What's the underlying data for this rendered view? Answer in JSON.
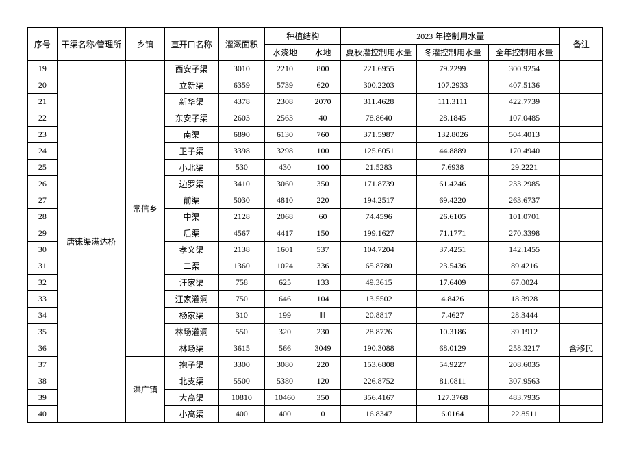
{
  "headers": {
    "seq": "序号",
    "canal": "干渠名称/管理所",
    "town": "乡镇",
    "opening": "直开口名称",
    "area": "灌溉面积",
    "plant_group": "种植结构",
    "plant_irrigated": "水浇地",
    "plant_water": "水地",
    "ctrl_group": "2023 年控制用水量",
    "ctrl_summer": "夏秋灌控制用水量",
    "ctrl_winter": "冬灌控制用水量",
    "ctrl_year": "全年控制用水量",
    "note": "备注"
  },
  "canal_name": "唐徕渠满达桥",
  "groups": [
    {
      "town": "常信乡",
      "rows": [
        {
          "seq": "19",
          "opening": "西安子渠",
          "area": "3010",
          "irrigated": "2210",
          "water": "800",
          "summer": "221.6955",
          "winter": "79.2299",
          "year": "300.9254",
          "note": ""
        },
        {
          "seq": "20",
          "opening": "立新渠",
          "area": "6359",
          "irrigated": "5739",
          "water": "620",
          "summer": "300.2203",
          "winter": "107.2933",
          "year": "407.5136",
          "note": ""
        },
        {
          "seq": "21",
          "opening": "新华渠",
          "area": "4378",
          "irrigated": "2308",
          "water": "2070",
          "summer": "311.4628",
          "winter": "111.3111",
          "year": "422.7739",
          "note": ""
        },
        {
          "seq": "22",
          "opening": "东安子渠",
          "area": "2603",
          "irrigated": "2563",
          "water": "40",
          "summer": "78.8640",
          "winter": "28.1845",
          "year": "107.0485",
          "note": ""
        },
        {
          "seq": "23",
          "opening": "南渠",
          "area": "6890",
          "irrigated": "6130",
          "water": "760",
          "summer": "371.5987",
          "winter": "132.8026",
          "year": "504.4013",
          "note": ""
        },
        {
          "seq": "24",
          "opening": "卫子渠",
          "area": "3398",
          "irrigated": "3298",
          "water": "100",
          "summer": "125.6051",
          "winter": "44.8889",
          "year": "170.4940",
          "note": ""
        },
        {
          "seq": "25",
          "opening": "小北渠",
          "area": "530",
          "irrigated": "430",
          "water": "100",
          "summer": "21.5283",
          "winter": "7.6938",
          "year": "29.2221",
          "note": ""
        },
        {
          "seq": "26",
          "opening": "边罗渠",
          "area": "3410",
          "irrigated": "3060",
          "water": "350",
          "summer": "171.8739",
          "winter": "61.4246",
          "year": "233.2985",
          "note": ""
        },
        {
          "seq": "27",
          "opening": "前渠",
          "area": "5030",
          "irrigated": "4810",
          "water": "220",
          "summer": "194.2517",
          "winter": "69.4220",
          "year": "263.6737",
          "note": ""
        },
        {
          "seq": "28",
          "opening": "中渠",
          "area": "2128",
          "irrigated": "2068",
          "water": "60",
          "summer": "74.4596",
          "winter": "26.6105",
          "year": "101.0701",
          "note": ""
        },
        {
          "seq": "29",
          "opening": "后渠",
          "area": "4567",
          "irrigated": "4417",
          "water": "150",
          "summer": "199.1627",
          "winter": "71.1771",
          "year": "270.3398",
          "note": ""
        },
        {
          "seq": "30",
          "opening": "孝义渠",
          "area": "2138",
          "irrigated": "1601",
          "water": "537",
          "summer": "104.7204",
          "winter": "37.4251",
          "year": "142.1455",
          "note": ""
        },
        {
          "seq": "31",
          "opening": "二渠",
          "area": "1360",
          "irrigated": "1024",
          "water": "336",
          "summer": "65.8780",
          "winter": "23.5436",
          "year": "89.4216",
          "note": ""
        },
        {
          "seq": "32",
          "opening": "汪家渠",
          "area": "758",
          "irrigated": "625",
          "water": "133",
          "summer": "49.3615",
          "winter": "17.6409",
          "year": "67.0024",
          "note": ""
        },
        {
          "seq": "33",
          "opening": "汪家灌洞",
          "area": "750",
          "irrigated": "646",
          "water": "104",
          "summer": "13.5502",
          "winter": "4.8426",
          "year": "18.3928",
          "note": ""
        },
        {
          "seq": "34",
          "opening": "杨家渠",
          "area": "310",
          "irrigated": "199",
          "water": "Ⅲ",
          "summer": "20.8817",
          "winter": "7.4627",
          "year": "28.3444",
          "note": ""
        },
        {
          "seq": "35",
          "opening": "林场灌洞",
          "area": "550",
          "irrigated": "320",
          "water": "230",
          "summer": "28.8726",
          "winter": "10.3186",
          "year": "39.1912",
          "note": ""
        },
        {
          "seq": "36",
          "opening": "林场渠",
          "area": "3615",
          "irrigated": "566",
          "water": "3049",
          "summer": "190.3088",
          "winter": "68.0129",
          "year": "258.3217",
          "note": "含移民"
        }
      ]
    },
    {
      "town": "洪广镇",
      "rows": [
        {
          "seq": "37",
          "opening": "抱子渠",
          "area": "3300",
          "irrigated": "3080",
          "water": "220",
          "summer": "153.6808",
          "winter": "54.9227",
          "year": "208.6035",
          "note": ""
        },
        {
          "seq": "38",
          "opening": "北支渠",
          "area": "5500",
          "irrigated": "5380",
          "water": "120",
          "summer": "226.8752",
          "winter": "81.0811",
          "year": "307.9563",
          "note": ""
        },
        {
          "seq": "39",
          "opening": "大高渠",
          "area": "10810",
          "irrigated": "10460",
          "water": "350",
          "summer": "356.4167",
          "winter": "127.3768",
          "year": "483.7935",
          "note": ""
        },
        {
          "seq": "40",
          "opening": "小高渠",
          "area": "400",
          "irrigated": "400",
          "water": "0",
          "summer": "16.8347",
          "winter": "6.0164",
          "year": "22.8511",
          "note": ""
        }
      ]
    }
  ]
}
